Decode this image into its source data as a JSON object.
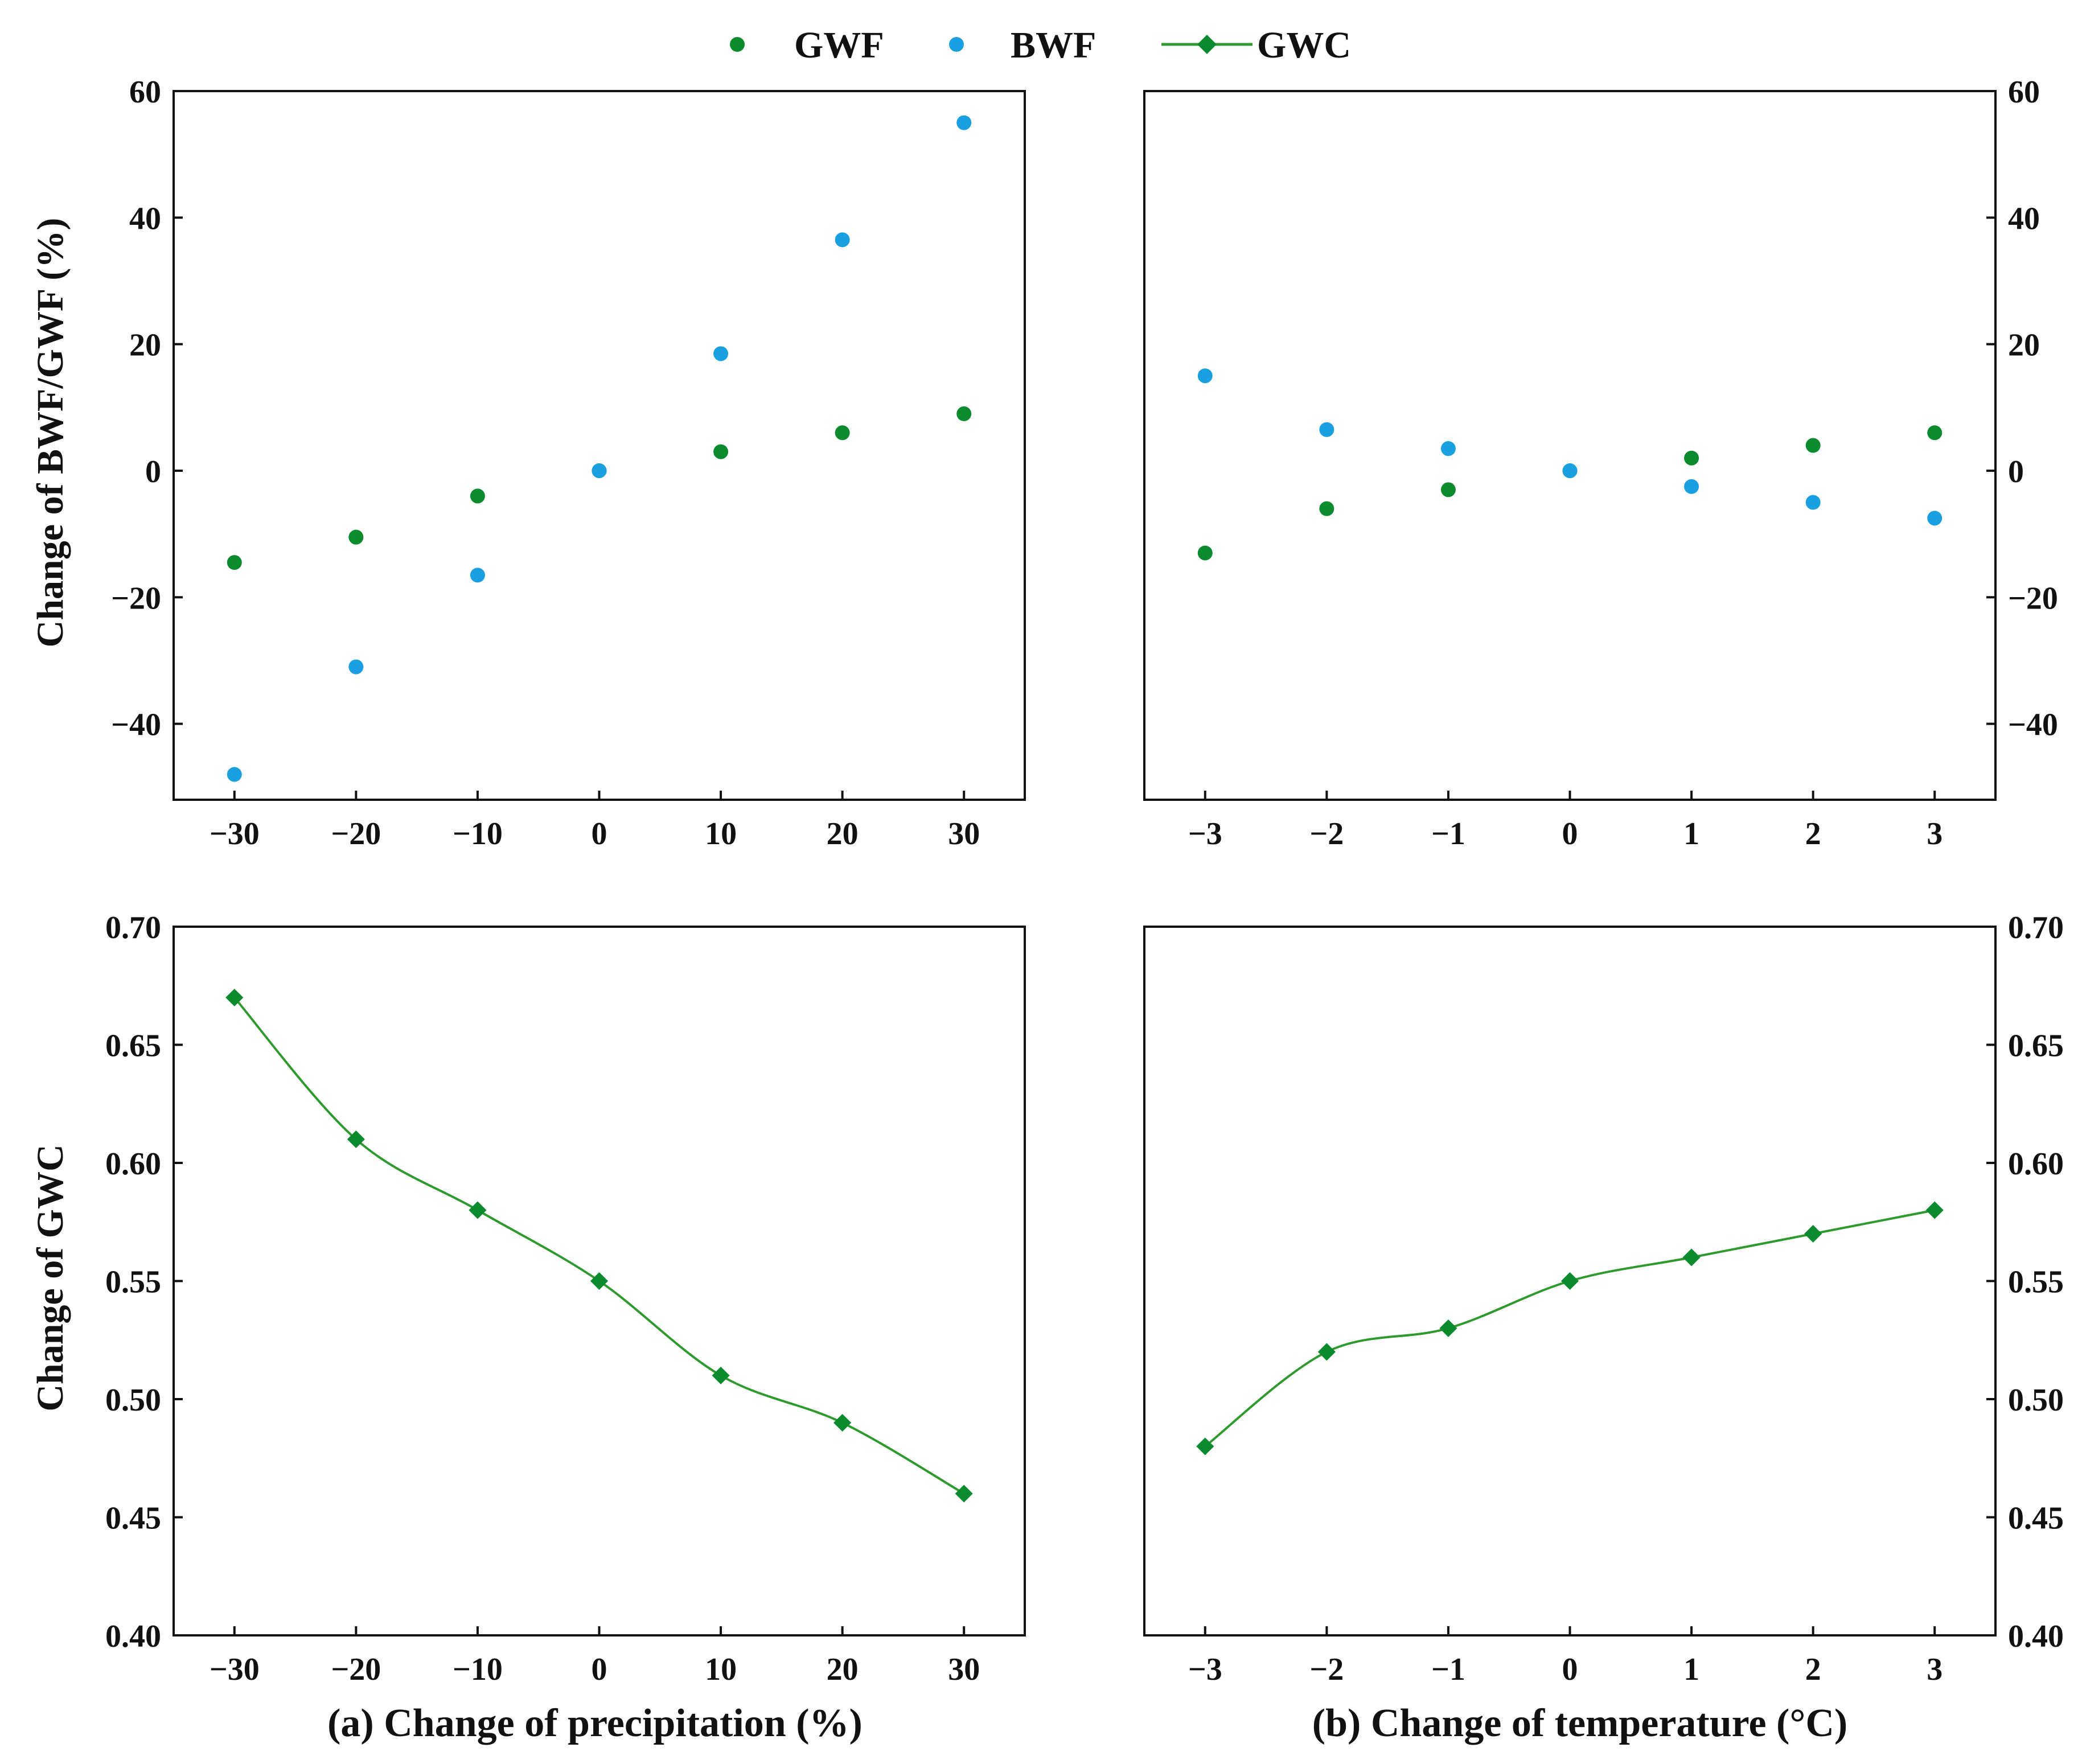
{
  "legend": {
    "gwf_label": "GWF",
    "bwf_label": "BWF",
    "gwc_label": "GWC"
  },
  "colors": {
    "gwf": "#0b8a2e",
    "bwf": "#1a9fe0",
    "gwc": "#2e9a2e",
    "axis": "#111111"
  },
  "chart_data": [
    {
      "id": "a-top",
      "type": "scatter",
      "xlabel": "",
      "ylabel": "Change of BWF/GWF (%)",
      "x": [
        -30,
        -20,
        -10,
        0,
        10,
        20,
        30
      ],
      "xticks": [
        "−30",
        "−20",
        "−10",
        "0",
        "10",
        "20",
        "30"
      ],
      "xlim": [
        -35,
        35
      ],
      "ylim": [
        -52,
        60
      ],
      "yticks": [
        -40,
        -20,
        0,
        20,
        40,
        60
      ],
      "yticklabels": [
        "−40",
        "−20",
        "0",
        "20",
        "40",
        "60"
      ],
      "y_axis_side": "left",
      "series": [
        {
          "name": "GWF",
          "values": [
            -14.5,
            -10.5,
            -4,
            0,
            3,
            6,
            9
          ]
        },
        {
          "name": "BWF",
          "values": [
            -48,
            -31,
            -16.5,
            0,
            18.5,
            36.5,
            55
          ]
        }
      ]
    },
    {
      "id": "b-top",
      "type": "scatter",
      "xlabel": "",
      "ylabel": "",
      "x": [
        -3,
        -2,
        -1,
        0,
        1,
        2,
        3
      ],
      "xticks": [
        "−3",
        "−2",
        "−1",
        "0",
        "1",
        "2",
        "3"
      ],
      "xlim": [
        -3.5,
        3.5
      ],
      "ylim": [
        -52,
        60
      ],
      "yticks": [
        -40,
        -20,
        0,
        20,
        40,
        60
      ],
      "yticklabels": [
        "−40",
        "−20",
        "0",
        "20",
        "40",
        "60"
      ],
      "y_axis_side": "right",
      "series": [
        {
          "name": "GWF",
          "values": [
            -13,
            -6,
            -3,
            0,
            2,
            4,
            6
          ]
        },
        {
          "name": "BWF",
          "values": [
            15,
            6.5,
            3.5,
            0,
            -2.5,
            -5,
            -7.5
          ]
        }
      ]
    },
    {
      "id": "a-bottom",
      "type": "line",
      "xlabel": "(a)  Change of precipitation (%)",
      "ylabel": "Change of GWC",
      "x": [
        -30,
        -20,
        -10,
        0,
        10,
        20,
        30
      ],
      "xticks": [
        "−30",
        "−20",
        "−10",
        "0",
        "10",
        "20",
        "30"
      ],
      "xlim": [
        -35,
        35
      ],
      "ylim": [
        0.4,
        0.7
      ],
      "yticks": [
        0.4,
        0.45,
        0.5,
        0.55,
        0.6,
        0.65,
        0.7
      ],
      "yticklabels": [
        "0.40",
        "0.45",
        "0.50",
        "0.55",
        "0.60",
        "0.65",
        "0.70"
      ],
      "y_axis_side": "left",
      "series": [
        {
          "name": "GWC",
          "values": [
            0.67,
            0.61,
            0.58,
            0.55,
            0.51,
            0.49,
            0.46
          ]
        }
      ]
    },
    {
      "id": "b-bottom",
      "type": "line",
      "xlabel": "(b)  Change of temperature (°C)",
      "ylabel": "",
      "x": [
        -3,
        -2,
        -1,
        0,
        1,
        2,
        3
      ],
      "xticks": [
        "−3",
        "−2",
        "−1",
        "0",
        "1",
        "2",
        "3"
      ],
      "xlim": [
        -3.5,
        3.5
      ],
      "ylim": [
        0.4,
        0.7
      ],
      "yticks": [
        0.4,
        0.45,
        0.5,
        0.55,
        0.6,
        0.65,
        0.7
      ],
      "yticklabels": [
        "0.40",
        "0.45",
        "0.50",
        "0.55",
        "0.60",
        "0.65",
        "0.70"
      ],
      "y_axis_side": "right",
      "series": [
        {
          "name": "GWC",
          "values": [
            0.48,
            0.52,
            0.53,
            0.55,
            0.56,
            0.57,
            0.58
          ]
        }
      ]
    }
  ]
}
